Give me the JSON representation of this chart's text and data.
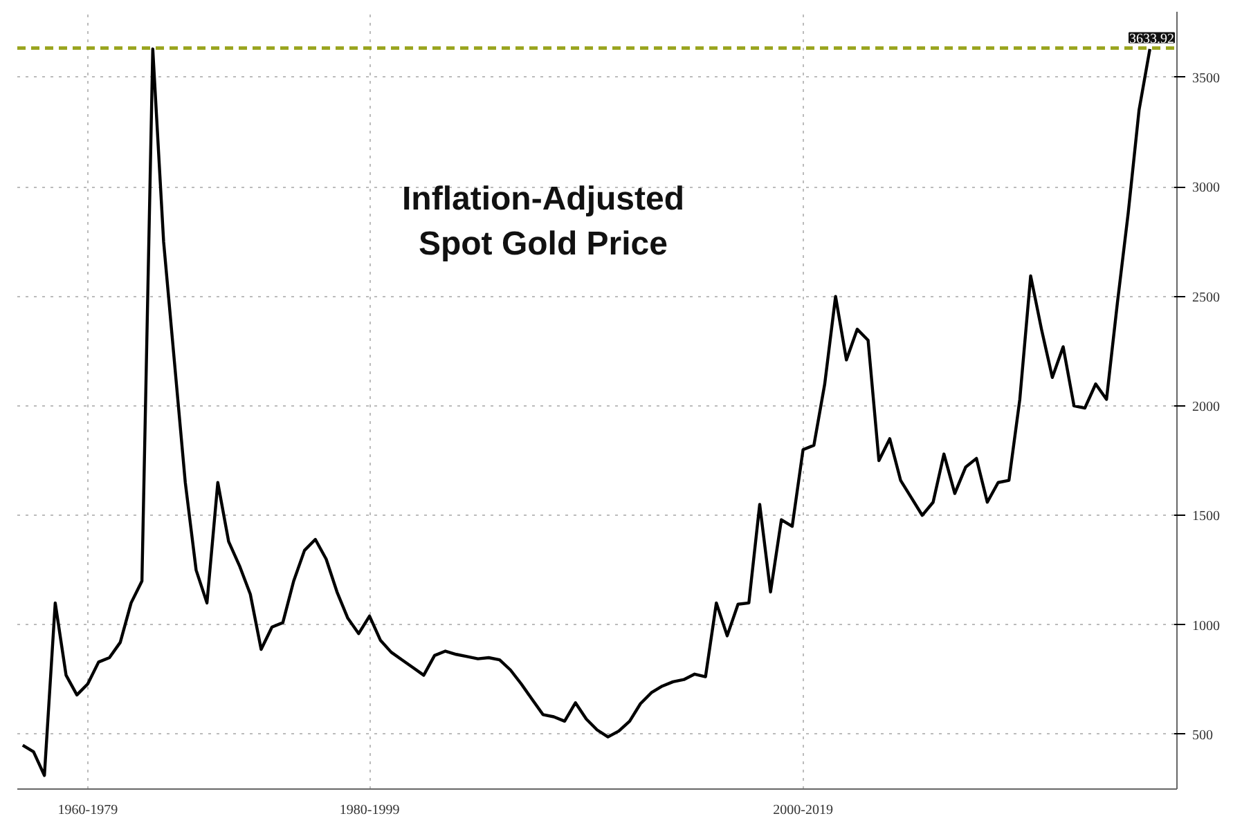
{
  "chart_data": {
    "type": "line",
    "title": "Inflation-Adjusted\nSpot Gold Price",
    "categories": [
      null,
      null,
      null,
      null,
      null,
      null,
      "1960-1979",
      null,
      null,
      null,
      null,
      null,
      null,
      null,
      null,
      null,
      null,
      null,
      null,
      null,
      null,
      null,
      null,
      null,
      null,
      null,
      null,
      null,
      null,
      null,
      null,
      null,
      "1980-1999",
      null,
      null,
      null,
      null,
      null,
      null,
      null,
      null,
      null,
      null,
      null,
      null,
      null,
      null,
      null,
      null,
      null,
      null,
      null,
      null,
      null,
      null,
      null,
      null,
      null,
      null,
      null,
      null,
      null,
      null,
      null,
      null,
      null,
      null,
      null,
      null,
      null,
      null,
      null,
      "2000-2019",
      null,
      null,
      null,
      null,
      null,
      null,
      null,
      null,
      null,
      null,
      null,
      null,
      null,
      null,
      null,
      null,
      null,
      null,
      null,
      null,
      null,
      null,
      null,
      null,
      null,
      null,
      null,
      null,
      null,
      null,
      null,
      null
    ],
    "series": [
      {
        "color": "#000000",
        "values": [
          450,
          420,
          312,
          1100,
          770,
          680,
          730,
          830,
          850,
          920,
          1100,
          1200,
          3630,
          2750,
          2200,
          1650,
          1250,
          1100,
          1650,
          1380,
          1270,
          1140,
          888,
          990,
          1010,
          1200,
          1340,
          1390,
          1300,
          1150,
          1030,
          960,
          1040,
          930,
          875,
          840,
          805,
          770,
          860,
          880,
          865,
          855,
          845,
          850,
          840,
          794,
          730,
          660,
          590,
          580,
          560,
          644,
          570,
          520,
          488,
          515,
          560,
          640,
          690,
          720,
          740,
          750,
          775,
          763,
          1100,
          950,
          1094,
          1100,
          1550,
          1150,
          1480,
          1450,
          1800,
          1820,
          2100,
          2500,
          2210,
          2350,
          2300,
          1750,
          1850,
          1660,
          1580,
          1500,
          1560,
          1780,
          1600,
          1720,
          1760,
          1560,
          1650,
          1660,
          2030,
          2594,
          2350,
          2130,
          2270,
          2000,
          1990,
          2100,
          2030,
          2469,
          2880,
          3350,
          3630
        ]
      }
    ],
    "ylim": [
      250,
      3800
    ],
    "yticks": [
      500,
      1000,
      1500,
      2000,
      2500,
      3000,
      3500
    ],
    "grid": true,
    "line_style": "solid",
    "ref_lines": [
      {
        "axis": "y",
        "value": 3633.92,
        "label": "3633.92",
        "color": "#9aa520",
        "line_style": "dashed"
      }
    ]
  }
}
